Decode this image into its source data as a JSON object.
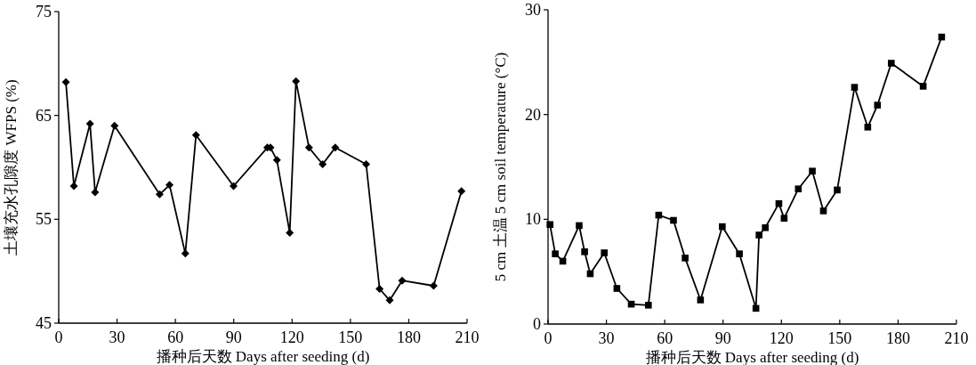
{
  "chart_data": [
    {
      "type": "line",
      "xlabel": "播种后天数 Days after seeding (d)",
      "ylabel": "土壤充水孔隙度 WFPS (%)",
      "xlim": [
        0,
        210
      ],
      "xticks": [
        0,
        30,
        60,
        90,
        120,
        150,
        180,
        210
      ],
      "ylim": [
        45,
        75
      ],
      "yticks": [
        45,
        55,
        65,
        75
      ],
      "marker": "diamond",
      "line_style": "solid",
      "grid": false,
      "series": [
        {
          "color": "#000000",
          "x": [
            3.7,
            7.8,
            16.1,
            18.7,
            28.7,
            51.9,
            57.0,
            65.1,
            70.6,
            89.9,
            107.3,
            108.9,
            112.2,
            118.8,
            122.0,
            128.7,
            135.7,
            142.2,
            158.1,
            165.0,
            170.2,
            176.6,
            192.8,
            207.1
          ],
          "values": [
            68.2,
            58.2,
            64.2,
            57.6,
            64.0,
            57.4,
            58.3,
            51.7,
            63.1,
            58.2,
            61.9,
            61.9,
            60.7,
            53.7,
            68.3,
            61.9,
            60.3,
            61.9,
            60.3,
            48.3,
            47.2,
            49.1,
            48.6,
            57.7
          ]
        }
      ]
    },
    {
      "type": "line",
      "xlabel": "播种后天数 Days after seeding (d)",
      "ylabel": "5 cm 土温 5 cm soil temperature (°C)",
      "xlim": [
        0,
        210
      ],
      "xticks": [
        0,
        30,
        60,
        90,
        120,
        150,
        180,
        210
      ],
      "ylim": [
        0,
        30
      ],
      "yticks": [
        0,
        10,
        20,
        30
      ],
      "marker": "square",
      "line_style": "solid",
      "grid": false,
      "series": [
        {
          "color": "#000000",
          "x": [
            1.0,
            3.7,
            7.6,
            16.0,
            18.8,
            21.7,
            28.9,
            35.4,
            42.8,
            51.6,
            56.9,
            64.5,
            70.5,
            78.4,
            89.6,
            98.4,
            106.9,
            108.5,
            111.7,
            118.7,
            121.4,
            128.7,
            135.9,
            141.6,
            148.7,
            157.6,
            164.4,
            169.4,
            176.5,
            192.9,
            202.4
          ],
          "values": [
            9.5,
            6.7,
            6.0,
            9.4,
            6.9,
            4.8,
            6.8,
            3.4,
            1.9,
            1.8,
            10.4,
            9.9,
            6.3,
            2.3,
            9.3,
            6.7,
            1.5,
            8.5,
            9.2,
            11.5,
            10.1,
            12.9,
            14.6,
            10.8,
            12.8,
            22.6,
            18.8,
            20.9,
            24.9,
            22.7,
            27.4
          ]
        }
      ]
    }
  ]
}
